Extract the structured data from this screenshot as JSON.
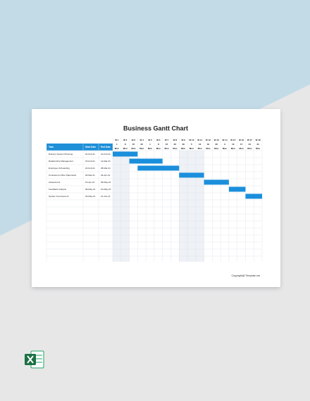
{
  "header": {
    "title": "Business Gantt Chart"
  },
  "table": {
    "columns": [
      "Task",
      "Start Date",
      "End Date"
    ],
    "weeks": [
      {
        "label": "W 1",
        "date": "1",
        "day": "Mon"
      },
      {
        "label": "W 2",
        "date": "8",
        "day": "Mon"
      },
      {
        "label": "W 3",
        "date": "15",
        "day": "Mon"
      },
      {
        "label": "W 4",
        "date": "22",
        "day": "Mon"
      },
      {
        "label": "W 5",
        "date": "1",
        "day": "Mon"
      },
      {
        "label": "W 6",
        "date": "8",
        "day": "Mon"
      },
      {
        "label": "W 7",
        "date": "15",
        "day": "Mon"
      },
      {
        "label": "W 8",
        "date": "22",
        "day": "Mon"
      },
      {
        "label": "W 9",
        "date": "29",
        "day": "Mon"
      },
      {
        "label": "W 10",
        "date": "5",
        "day": "Mon"
      },
      {
        "label": "W 11",
        "date": "12",
        "day": "Mon"
      },
      {
        "label": "W 12",
        "date": "19",
        "day": "Mon"
      },
      {
        "label": "W 13",
        "date": "26",
        "day": "Mon"
      },
      {
        "label": "W 14",
        "date": "3",
        "day": "Mon"
      },
      {
        "label": "W 15",
        "date": "10",
        "day": "Mon"
      },
      {
        "label": "W 16",
        "date": "17",
        "day": "Mon"
      },
      {
        "label": "W 17",
        "date": "24",
        "day": "Mon"
      },
      {
        "label": "W 18",
        "date": "31",
        "day": "Mon"
      }
    ],
    "rows": [
      [
        "Delivery System Planning",
        "01-Feb-21",
        "21-Feb-21"
      ],
      [
        "Relationship Management",
        "15-Feb-21",
        "14-Mar-21"
      ],
      [
        "Employee Onboarding",
        "22-Feb-21",
        "28-Mar-21"
      ],
      [
        "Contracts & Other Paperwork",
        "29-Mar-21",
        "18-Apr-21"
      ],
      [
        "Assessment",
        "19-Apr-21",
        "09-May-21"
      ],
      [
        "Feedback Analysis",
        "09-May-21",
        "16-May-21"
      ],
      [
        "System Improvement",
        "26-May-21",
        "13-Jun-21"
      ]
    ]
  },
  "footer": {
    "copyright": "Copyright@ Template.net"
  }
}
